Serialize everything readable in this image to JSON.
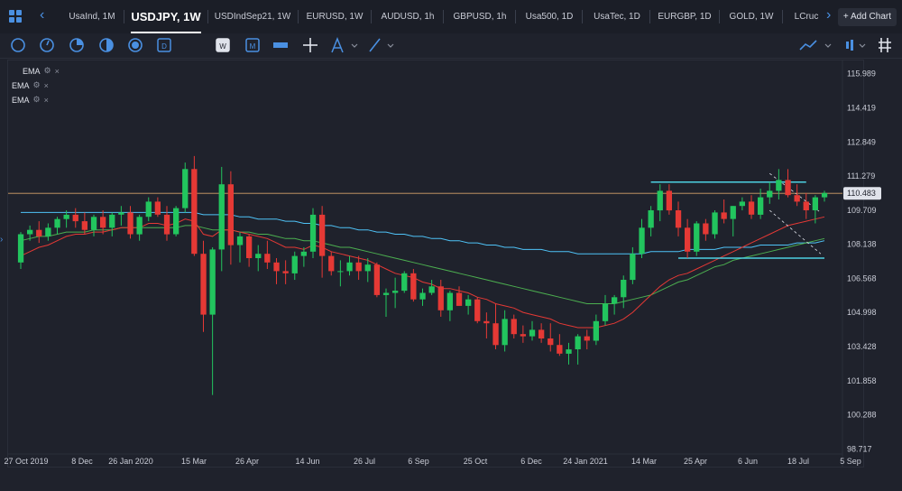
{
  "tabs": [
    {
      "label": "UsaInd, 1M",
      "x": 74,
      "w": 56
    },
    {
      "label": "USDJPY, 1W",
      "x": 145,
      "w": 78,
      "active": true
    },
    {
      "label": "USDIndSep21, 1W",
      "x": 237,
      "w": 86
    },
    {
      "label": "EURUSD, 1W",
      "x": 338,
      "w": 66
    },
    {
      "label": "AUDUSD, 1h",
      "x": 420,
      "w": 64
    },
    {
      "label": "GBPUSD, 1h",
      "x": 500,
      "w": 64
    },
    {
      "label": "Usa500, 1D",
      "x": 580,
      "w": 58
    },
    {
      "label": "UsaTec, 1D",
      "x": 655,
      "w": 58
    },
    {
      "label": "EURGBP, 1D",
      "x": 728,
      "w": 62
    },
    {
      "label": "GOLD, 1W",
      "x": 806,
      "w": 54
    },
    {
      "label": "LCruc",
      "x": 877,
      "w": 34
    }
  ],
  "add_chart_label": "Add Chart",
  "legend": [
    {
      "name": "EMA"
    },
    {
      "name": "EMA"
    },
    {
      "name": "EMA"
    }
  ],
  "price_axis": {
    "labels": [
      "115.989",
      "114.419",
      "112.849",
      "111.279",
      "109.709",
      "108.138",
      "106.568",
      "104.998",
      "103.428",
      "101.858",
      "100.288",
      "98.717"
    ],
    "current_price": "110.483"
  },
  "date_axis": {
    "labels": [
      "27 Oct 2019",
      "8 Dec",
      "26 Jan 2020",
      "15 Mar",
      "26 Apr",
      "14 Jun",
      "26 Jul",
      "6 Sep",
      "25 Oct",
      "6 Dec",
      "24 Jan 2021",
      "14 Mar",
      "25 Apr",
      "6 Jun",
      "18 Jul",
      "5 Sep"
    ]
  },
  "colors": {
    "up": "#22c55e",
    "down": "#e53935",
    "ema_fast": "#e53935",
    "ema_mid": "#4caf50",
    "ema_slow": "#4fc3f7",
    "price_line": "#d4a36a",
    "hline": "#4dd0e1",
    "accent": "#4a90e2"
  },
  "chart_data": {
    "type": "candlestick",
    "symbol": "USDJPY",
    "timeframe": "1W",
    "ylim": [
      97.9,
      116.6
    ],
    "candles": [
      [
        107.3,
        108.7,
        107.0,
        108.6
      ],
      [
        108.6,
        109.0,
        108.3,
        108.8
      ],
      [
        108.8,
        109.2,
        108.2,
        108.5
      ],
      [
        108.5,
        109.1,
        108.3,
        108.9
      ],
      [
        108.9,
        109.4,
        108.6,
        109.3
      ],
      [
        109.3,
        109.7,
        108.9,
        109.5
      ],
      [
        109.5,
        109.8,
        108.9,
        109.2
      ],
      [
        109.2,
        109.6,
        108.6,
        108.8
      ],
      [
        108.8,
        109.5,
        108.5,
        109.4
      ],
      [
        109.4,
        109.7,
        108.6,
        108.9
      ],
      [
        108.9,
        109.6,
        108.5,
        109.5
      ],
      [
        109.5,
        109.9,
        109.0,
        109.6
      ],
      [
        109.6,
        109.9,
        108.4,
        108.6
      ],
      [
        108.6,
        109.5,
        108.3,
        109.4
      ],
      [
        109.4,
        110.3,
        109.2,
        110.1
      ],
      [
        110.1,
        110.3,
        109.4,
        109.5
      ],
      [
        109.5,
        109.9,
        108.3,
        108.6
      ],
      [
        108.6,
        109.9,
        108.5,
        109.8
      ],
      [
        109.8,
        111.9,
        109.6,
        111.6
      ],
      [
        111.6,
        112.2,
        107.6,
        107.7
      ],
      [
        107.7,
        108.3,
        104.1,
        104.9
      ],
      [
        104.9,
        108.0,
        101.2,
        107.9
      ],
      [
        107.9,
        111.7,
        106.9,
        110.9
      ],
      [
        110.9,
        111.5,
        107.2,
        108.1
      ],
      [
        108.1,
        108.7,
        107.3,
        108.5
      ],
      [
        108.5,
        108.6,
        107.1,
        107.5
      ],
      [
        107.5,
        108.1,
        106.9,
        107.7
      ],
      [
        107.7,
        108.3,
        107.0,
        107.3
      ],
      [
        107.3,
        107.5,
        106.3,
        106.9
      ],
      [
        106.9,
        107.4,
        106.3,
        106.8
      ],
      [
        106.8,
        107.8,
        106.5,
        107.6
      ],
      [
        107.6,
        108.0,
        107.1,
        107.8
      ],
      [
        107.8,
        109.8,
        107.5,
        109.5
      ],
      [
        109.5,
        109.9,
        106.6,
        107.6
      ],
      [
        107.6,
        107.8,
        106.7,
        106.9
      ],
      [
        106.9,
        107.4,
        106.2,
        106.9
      ],
      [
        106.9,
        107.6,
        106.7,
        107.3
      ],
      [
        107.3,
        107.6,
        106.5,
        106.9
      ],
      [
        106.9,
        107.5,
        106.4,
        107.2
      ],
      [
        107.2,
        107.3,
        105.7,
        105.8
      ],
      [
        105.8,
        106.1,
        104.8,
        105.9
      ],
      [
        105.9,
        106.6,
        105.2,
        106.0
      ],
      [
        106.0,
        106.9,
        105.9,
        106.8
      ],
      [
        106.8,
        107.0,
        105.5,
        105.6
      ],
      [
        105.6,
        106.1,
        105.3,
        105.9
      ],
      [
        105.9,
        106.5,
        105.8,
        106.2
      ],
      [
        106.2,
        106.5,
        104.8,
        105.1
      ],
      [
        105.1,
        106.0,
        104.6,
        105.9
      ],
      [
        105.9,
        106.2,
        105.3,
        105.3
      ],
      [
        105.3,
        105.8,
        104.9,
        105.6
      ],
      [
        105.6,
        105.7,
        104.5,
        104.6
      ],
      [
        104.6,
        105.0,
        103.8,
        104.5
      ],
      [
        104.5,
        105.4,
        103.3,
        103.5
      ],
      [
        103.5,
        105.1,
        103.2,
        104.7
      ],
      [
        104.7,
        104.9,
        103.8,
        104.0
      ],
      [
        104.0,
        104.4,
        103.6,
        103.9
      ],
      [
        103.9,
        104.6,
        103.7,
        104.2
      ],
      [
        104.2,
        104.5,
        103.6,
        103.8
      ],
      [
        103.8,
        104.5,
        103.2,
        103.5
      ],
      [
        103.5,
        104.0,
        103.0,
        103.1
      ],
      [
        103.1,
        103.6,
        102.6,
        103.3
      ],
      [
        103.3,
        104.0,
        102.6,
        103.9
      ],
      [
        103.9,
        104.2,
        103.3,
        103.7
      ],
      [
        103.7,
        104.9,
        103.5,
        104.6
      ],
      [
        104.6,
        105.8,
        104.4,
        105.4
      ],
      [
        105.4,
        105.8,
        104.9,
        105.7
      ],
      [
        105.7,
        106.7,
        105.2,
        106.5
      ],
      [
        106.5,
        108.0,
        106.3,
        107.7
      ],
      [
        107.7,
        109.3,
        107.5,
        108.9
      ],
      [
        108.9,
        109.9,
        108.5,
        109.7
      ],
      [
        109.7,
        110.9,
        109.2,
        110.6
      ],
      [
        110.6,
        110.9,
        109.5,
        109.7
      ],
      [
        109.7,
        110.1,
        108.5,
        108.9
      ],
      [
        108.9,
        109.3,
        107.5,
        107.8
      ],
      [
        107.8,
        109.2,
        107.6,
        109.1
      ],
      [
        109.1,
        109.3,
        108.3,
        108.6
      ],
      [
        108.6,
        109.7,
        108.4,
        109.6
      ],
      [
        109.6,
        110.2,
        109.1,
        109.3
      ],
      [
        109.3,
        109.9,
        108.5,
        109.9
      ],
      [
        109.9,
        110.3,
        109.7,
        110.1
      ],
      [
        110.1,
        110.4,
        109.3,
        109.5
      ],
      [
        109.5,
        110.7,
        109.3,
        110.3
      ],
      [
        110.3,
        111.0,
        110.0,
        110.6
      ],
      [
        110.6,
        111.6,
        110.2,
        111.1
      ],
      [
        111.1,
        111.6,
        110.3,
        110.4
      ],
      [
        110.4,
        110.9,
        109.9,
        110.1
      ],
      [
        110.1,
        110.5,
        109.3,
        109.7
      ],
      [
        109.7,
        110.4,
        109.1,
        110.3
      ],
      [
        110.3,
        110.6,
        110.1,
        110.5
      ]
    ],
    "ema_fast": [
      107.6,
      107.8,
      108.0,
      108.1,
      108.3,
      108.5,
      108.6,
      108.6,
      108.7,
      108.7,
      108.8,
      108.9,
      108.9,
      108.9,
      109.1,
      109.1,
      109.0,
      109.1,
      109.3,
      109.2,
      108.6,
      108.5,
      108.8,
      108.8,
      108.7,
      108.6,
      108.5,
      108.4,
      108.2,
      108.0,
      108.0,
      107.9,
      108.1,
      108.0,
      107.8,
      107.7,
      107.6,
      107.5,
      107.4,
      107.2,
      107.0,
      106.8,
      106.7,
      106.6,
      106.4,
      106.3,
      106.1,
      106.1,
      106.0,
      105.9,
      105.7,
      105.6,
      105.4,
      105.3,
      105.2,
      105.0,
      104.9,
      104.8,
      104.7,
      104.5,
      104.4,
      104.3,
      104.3,
      104.3,
      104.4,
      104.5,
      104.7,
      105.0,
      105.4,
      105.8,
      106.2,
      106.5,
      106.7,
      106.8,
      107.0,
      107.2,
      107.4,
      107.6,
      107.8,
      108.0,
      108.2,
      108.4,
      108.6,
      108.8,
      109.0,
      109.1,
      109.2,
      109.3,
      109.4
    ],
    "ema_mid": [
      108.3,
      108.4,
      108.5,
      108.5,
      108.6,
      108.7,
      108.7,
      108.7,
      108.8,
      108.8,
      108.8,
      108.9,
      108.9,
      108.9,
      108.9,
      108.9,
      108.9,
      108.9,
      109.0,
      109.0,
      108.9,
      108.8,
      108.8,
      108.8,
      108.7,
      108.7,
      108.6,
      108.6,
      108.5,
      108.4,
      108.4,
      108.3,
      108.3,
      108.2,
      108.1,
      108.0,
      108.0,
      107.9,
      107.8,
      107.7,
      107.6,
      107.5,
      107.4,
      107.3,
      107.2,
      107.1,
      107.0,
      106.9,
      106.8,
      106.7,
      106.6,
      106.5,
      106.4,
      106.3,
      106.2,
      106.1,
      106.0,
      105.9,
      105.8,
      105.7,
      105.6,
      105.5,
      105.4,
      105.4,
      105.4,
      105.4,
      105.5,
      105.6,
      105.7,
      105.8,
      106.0,
      106.2,
      106.4,
      106.5,
      106.7,
      106.9,
      107.1,
      107.2,
      107.4,
      107.5,
      107.6,
      107.7,
      107.8,
      107.9,
      108.0,
      108.1,
      108.2,
      108.3,
      108.4
    ],
    "ema_slow": [
      109.6,
      109.6,
      109.6,
      109.6,
      109.6,
      109.6,
      109.6,
      109.6,
      109.6,
      109.6,
      109.6,
      109.6,
      109.6,
      109.6,
      109.6,
      109.6,
      109.6,
      109.6,
      109.6,
      109.6,
      109.5,
      109.5,
      109.5,
      109.5,
      109.4,
      109.4,
      109.3,
      109.3,
      109.3,
      109.2,
      109.2,
      109.1,
      109.1,
      109.0,
      109.0,
      108.9,
      108.9,
      108.8,
      108.8,
      108.7,
      108.7,
      108.6,
      108.6,
      108.5,
      108.5,
      108.4,
      108.4,
      108.3,
      108.3,
      108.2,
      108.2,
      108.1,
      108.1,
      108.0,
      108.0,
      107.9,
      107.9,
      107.9,
      107.8,
      107.8,
      107.8,
      107.7,
      107.7,
      107.7,
      107.7,
      107.7,
      107.7,
      107.7,
      107.7,
      107.8,
      107.8,
      107.8,
      107.8,
      107.9,
      107.9,
      107.9,
      107.9,
      108.0,
      108.0,
      108.0,
      108.0,
      108.1,
      108.1,
      108.1,
      108.1,
      108.2,
      108.2,
      108.2,
      108.3
    ],
    "current_price": 110.483,
    "resistance": 111.0,
    "support": 107.5
  }
}
